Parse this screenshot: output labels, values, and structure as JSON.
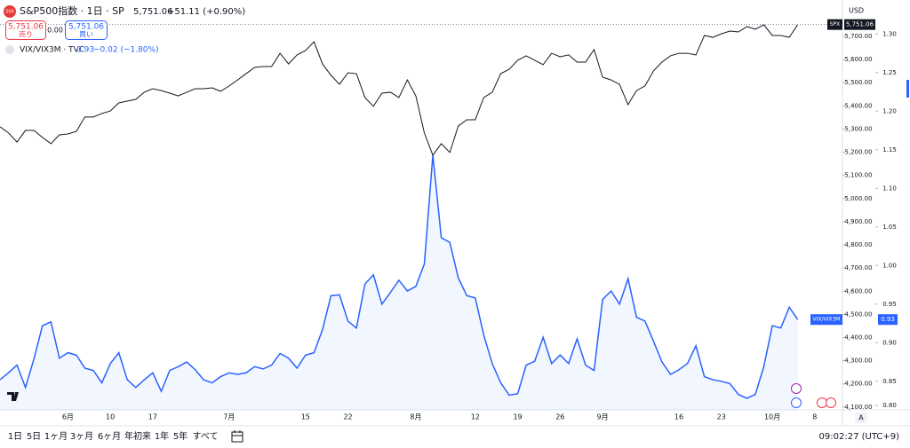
{
  "header": {
    "logo": "500",
    "symbol": "S&P500指数 · 1日 · SP",
    "last": "5,751.06",
    "change": "+51.11 (+0.90%)",
    "sell": {
      "price": "5,751.06",
      "label": "売り"
    },
    "spread": "0.00",
    "buy": {
      "price": "5,751.06",
      "label": "買い"
    }
  },
  "comparison": {
    "symbol": "VIX/VIX3M · TVC",
    "last": "0.93",
    "change": "−0.02 (−1.80%)"
  },
  "currency": "USD",
  "scale_mode": "A",
  "toolbar": {
    "ranges": [
      "1日",
      "5日",
      "1ヶ月",
      "3ヶ月",
      "6ヶ月",
      "年初来",
      "1年",
      "5年",
      "すべて"
    ],
    "clock": "09:02:27 (UTC+9)"
  },
  "chart_data": {
    "type": "line",
    "categories": [
      null,
      null,
      null,
      null,
      null,
      null,
      null,
      null,
      "6月",
      null,
      null,
      null,
      null,
      "10",
      null,
      null,
      null,
      null,
      "17",
      null,
      null,
      null,
      null,
      null,
      null,
      null,
      null,
      "7月",
      null,
      null,
      null,
      null,
      null,
      null,
      null,
      null,
      "15",
      null,
      null,
      null,
      null,
      "22",
      null,
      null,
      null,
      null,
      null,
      null,
      null,
      "8月",
      null,
      null,
      null,
      null,
      null,
      null,
      "12",
      null,
      null,
      null,
      null,
      "19",
      null,
      null,
      null,
      null,
      "26",
      null,
      null,
      null,
      null,
      "9月",
      null,
      null,
      null,
      null,
      null,
      null,
      null,
      null,
      "16",
      null,
      null,
      null,
      null,
      "23",
      null,
      null,
      null,
      null,
      null,
      "10月",
      null,
      null,
      null,
      null,
      "8"
    ],
    "series": [
      {
        "name": "SPX",
        "color": "#131722",
        "axis": "y",
        "values": [
          5310,
          5283,
          5244,
          5294,
          5294,
          5264,
          5237,
          5275,
          5279,
          5290,
          5352,
          5352,
          5367,
          5378,
          5413,
          5421,
          5428,
          5459,
          5474,
          5466,
          5455,
          5443,
          5459,
          5474,
          5474,
          5478,
          5463,
          5486,
          5512,
          5539,
          5566,
          5570,
          5570,
          5627,
          5581,
          5620,
          5639,
          5677,
          5581,
          5532,
          5493,
          5543,
          5539,
          5436,
          5398,
          5455,
          5459,
          5436,
          5512,
          5443,
          5283,
          5187,
          5237,
          5199,
          5313,
          5340,
          5340,
          5436,
          5459,
          5539,
          5558,
          5597,
          5616,
          5597,
          5578,
          5627,
          5612,
          5620,
          5589,
          5589,
          5643,
          5524,
          5512,
          5493,
          5405,
          5466,
          5486,
          5551,
          5589,
          5616,
          5627,
          5627,
          5620,
          5704,
          5696,
          5711,
          5723,
          5719,
          5742,
          5731,
          5750,
          5704,
          5704,
          5696,
          5751.06,
          null,
          null
        ]
      },
      {
        "name": "VIX/VIX3M",
        "color": "#2962ff",
        "axis": "y2",
        "values": [
          0.852,
          0.861,
          0.871,
          0.842,
          0.879,
          0.922,
          0.927,
          0.88,
          0.887,
          0.884,
          0.867,
          0.864,
          0.848,
          0.873,
          0.887,
          0.852,
          0.842,
          0.852,
          0.861,
          0.837,
          0.864,
          0.869,
          0.875,
          0.865,
          0.852,
          0.848,
          0.856,
          0.861,
          0.859,
          0.861,
          0.869,
          0.866,
          0.871,
          0.886,
          0.88,
          0.867,
          0.884,
          0.887,
          0.917,
          0.961,
          0.962,
          0.928,
          0.919,
          0.976,
          0.988,
          0.95,
          0.965,
          0.981,
          0.967,
          0.973,
          1.002,
          1.143,
          1.036,
          1.03,
          0.984,
          0.961,
          0.958,
          0.91,
          0.873,
          0.848,
          0.832,
          0.834,
          0.871,
          0.876,
          0.907,
          0.873,
          0.884,
          0.873,
          0.905,
          0.871,
          0.864,
          0.956,
          0.967,
          0.95,
          0.983,
          0.933,
          0.928,
          0.902,
          0.875,
          0.859,
          0.865,
          0.873,
          0.896,
          0.856,
          0.852,
          0.85,
          0.847,
          0.833,
          0.828,
          0.833,
          0.869,
          0.922,
          0.919,
          0.946,
          0.93,
          null,
          null
        ]
      }
    ],
    "ylim": [
      4088,
      5857
    ],
    "yticks": [
      {
        "value": 4100,
        "label": "4,100.00"
      },
      {
        "value": 4200,
        "label": "4,200.00"
      },
      {
        "value": 4300,
        "label": "4,300.00"
      },
      {
        "value": 4400,
        "label": "4,400.00"
      },
      {
        "value": 4500,
        "label": "4,500.00"
      },
      {
        "value": 4600,
        "label": "4,600.00"
      },
      {
        "value": 4700,
        "label": "4,700.00"
      },
      {
        "value": 4800,
        "label": "4,800.00"
      },
      {
        "value": 4900,
        "label": "4,900.00"
      },
      {
        "value": 5000,
        "label": "5,000.00"
      },
      {
        "value": 5100,
        "label": "5,100.00"
      },
      {
        "value": 5200,
        "label": "5,200.00"
      },
      {
        "value": 5300,
        "label": "5,300.00"
      },
      {
        "value": 5400,
        "label": "5,400.00"
      },
      {
        "value": 5500,
        "label": "5,500.00"
      },
      {
        "value": 5600,
        "label": "5,600.00"
      },
      {
        "value": 5700,
        "label": "5,700.00"
      }
    ],
    "y2lim": [
      0.813,
      1.344
    ],
    "y2ticks": [
      {
        "value": 0.8,
        "label": "0.80"
      },
      0.85,
      {
        "value": 0.9,
        "label": "0.90"
      },
      0.95,
      {
        "value": 1,
        "label": "1.00"
      },
      1.05,
      {
        "value": 1.1,
        "label": "1.10"
      },
      1.15,
      {
        "value": 1.2,
        "label": "1.20"
      },
      1.25,
      {
        "value": 1.3,
        "label": "1.30"
      }
    ],
    "area": true
  }
}
